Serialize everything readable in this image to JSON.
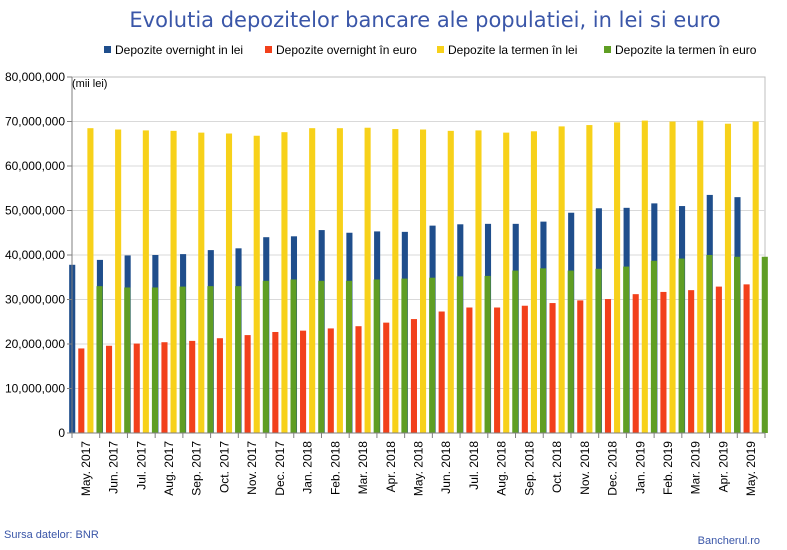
{
  "chart_data": {
    "type": "bar",
    "title": "Evolutia depozitelor bancare ale populatiei, in lei si euro",
    "unit_label": "(mii lei)",
    "source": "Sursa datelor: BNR",
    "watermark": "Bancherul.ro",
    "ylim": [
      0,
      80000000
    ],
    "yticks": [
      "0",
      "10,000,000",
      "20,000,000",
      "30,000,000",
      "40,000,000",
      "50,000,000",
      "60,000,000",
      "70,000,000",
      "80,000,000"
    ],
    "categories": [
      "May. 2017",
      "Jun. 2017",
      "Jul. 2017",
      "Aug. 2017",
      "Sep. 2017",
      "Oct. 2017",
      "Nov. 2017",
      "Dec. 2017",
      "Jan. 2018",
      "Feb. 2018",
      "Mar. 2018",
      "Apr. 2018",
      "May. 2018",
      "Jun. 2018",
      "Jul. 2018",
      "Aug. 2018",
      "Sep. 2018",
      "Oct. 2018",
      "Nov. 2018",
      "Dec. 2018",
      "Jan. 2019",
      "Feb. 2019",
      "Mar. 2019",
      "Apr. 2019",
      "May. 2019"
    ],
    "grid": true,
    "legend_position": "top",
    "series": [
      {
        "name": "Depozite overnight in lei",
        "color": "#1f4e8c",
        "values": [
          37800000,
          38900000,
          39900000,
          40000000,
          40200000,
          41100000,
          41500000,
          44000000,
          44200000,
          45600000,
          45000000,
          45300000,
          45200000,
          46600000,
          46900000,
          47000000,
          47000000,
          47500000,
          49500000,
          50500000,
          50600000,
          51600000,
          51000000,
          53500000,
          53000000
        ]
      },
      {
        "name": "Depozite overnight în euro",
        "color": "#f2401b",
        "values": [
          19000000,
          19600000,
          20100000,
          20400000,
          20700000,
          21300000,
          22000000,
          22700000,
          23000000,
          23500000,
          24000000,
          24800000,
          25600000,
          27300000,
          28200000,
          28200000,
          28600000,
          29200000,
          29800000,
          30100000,
          31200000,
          31700000,
          32100000,
          32900000,
          33400000
        ]
      },
      {
        "name": "Depozite la termen în lei",
        "color": "#f7d11a",
        "values": [
          68500000,
          68200000,
          68000000,
          67900000,
          67500000,
          67300000,
          66800000,
          67600000,
          68500000,
          68500000,
          68600000,
          68300000,
          68200000,
          67900000,
          68000000,
          67500000,
          67800000,
          68900000,
          69200000,
          69800000,
          70200000,
          70000000,
          70200000,
          69500000,
          70000000
        ]
      },
      {
        "name": "Depozite la termen în euro",
        "color": "#5f9e24",
        "values": [
          33000000,
          32700000,
          32700000,
          32900000,
          33000000,
          33000000,
          34200000,
          34500000,
          34200000,
          34200000,
          34500000,
          34700000,
          34900000,
          35200000,
          35300000,
          36500000,
          37000000,
          36500000,
          36900000,
          37400000,
          38700000,
          39200000,
          40000000,
          39600000,
          39600000
        ]
      }
    ]
  }
}
